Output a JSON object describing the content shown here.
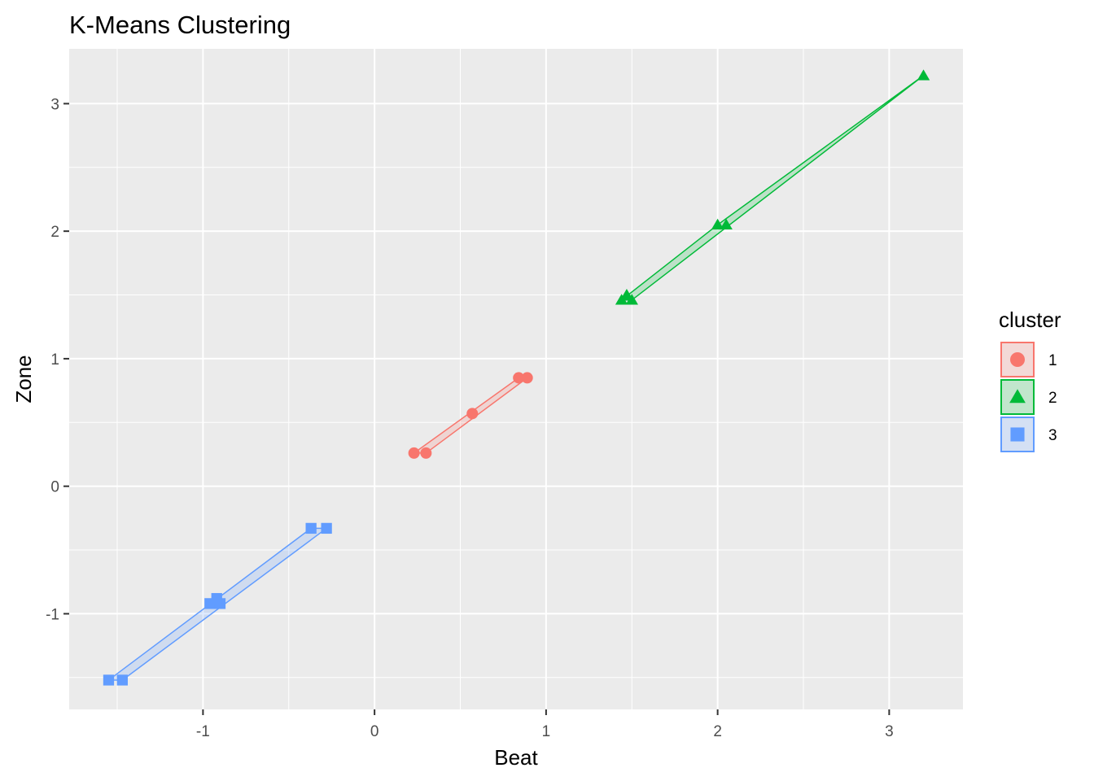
{
  "chart_data": {
    "type": "scatter",
    "title": "K-Means Clustering",
    "xlabel": "Beat",
    "ylabel": "Zone",
    "xlim": [
      -1.78,
      3.43
    ],
    "ylim": [
      -1.75,
      3.43
    ],
    "x_ticks": [
      -1,
      0,
      1,
      2,
      3
    ],
    "y_ticks": [
      -1,
      0,
      1,
      2,
      3
    ],
    "x_tick_labels": [
      "-1",
      "0",
      "1",
      "2",
      "3"
    ],
    "y_tick_labels": [
      "-1",
      "0",
      "1",
      "2",
      "3"
    ],
    "grid": true,
    "legend": {
      "title": "cluster",
      "position": "right"
    },
    "series": [
      {
        "name": "1",
        "shape": "circle",
        "color": "#F8766D",
        "points": [
          [
            0.23,
            0.26
          ],
          [
            0.3,
            0.26
          ],
          [
            0.57,
            0.57
          ],
          [
            0.84,
            0.85
          ],
          [
            0.89,
            0.85
          ]
        ],
        "hull": [
          [
            0.23,
            0.26
          ],
          [
            0.3,
            0.26
          ],
          [
            0.89,
            0.85
          ],
          [
            0.84,
            0.85
          ]
        ]
      },
      {
        "name": "2",
        "shape": "triangle",
        "color": "#00BA38",
        "points": [
          [
            1.44,
            1.46
          ],
          [
            1.5,
            1.46
          ],
          [
            1.47,
            1.5
          ],
          [
            2.0,
            2.05
          ],
          [
            2.05,
            2.05
          ],
          [
            3.2,
            3.22
          ]
        ],
        "hull": [
          [
            1.44,
            1.46
          ],
          [
            1.5,
            1.46
          ],
          [
            3.2,
            3.22
          ],
          [
            2.0,
            2.05
          ]
        ]
      },
      {
        "name": "3",
        "shape": "square",
        "color": "#619CFF",
        "points": [
          [
            -1.55,
            -1.52
          ],
          [
            -1.47,
            -1.52
          ],
          [
            -0.96,
            -0.92
          ],
          [
            -0.9,
            -0.92
          ],
          [
            -0.92,
            -0.88
          ],
          [
            -0.37,
            -0.33
          ],
          [
            -0.28,
            -0.33
          ]
        ],
        "hull": [
          [
            -1.55,
            -1.52
          ],
          [
            -1.47,
            -1.52
          ],
          [
            -0.28,
            -0.33
          ],
          [
            -0.37,
            -0.33
          ]
        ]
      }
    ]
  }
}
